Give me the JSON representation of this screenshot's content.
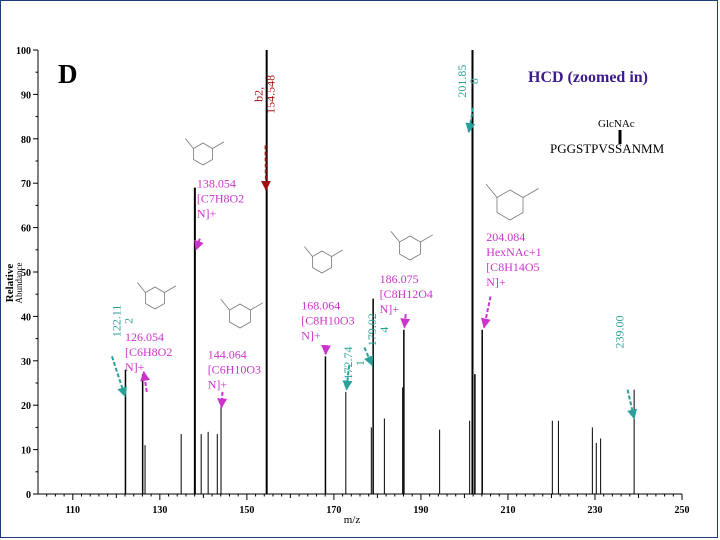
{
  "panel_label": "D",
  "title": "HCD (zoomed in)",
  "peptide": {
    "glycan_label": "GlcNAc",
    "sequence": "PGGSTPVSSANMM"
  },
  "colors": {
    "peak": "#000000",
    "magenta": "#cc33cc",
    "teal": "#2aa198",
    "dark_red": "#a01010",
    "title_purple": "#3d1a8c",
    "frame": "#1f3f7a"
  },
  "chart_data": {
    "type": "bar",
    "xlabel": "m/z",
    "ylabel": "Relative Abundance",
    "xlim": [
      102,
      250
    ],
    "ylim": [
      0,
      100
    ],
    "x_ticks": [
      110,
      130,
      150,
      170,
      190,
      210,
      230,
      250
    ],
    "y_ticks": [
      0,
      10,
      20,
      30,
      40,
      50,
      60,
      70,
      80,
      90,
      100
    ],
    "peaks": [
      {
        "x": 122.1,
        "y": 28
      },
      {
        "x": 126.05,
        "y": 27
      },
      {
        "x": 126.6,
        "y": 11
      },
      {
        "x": 134.9,
        "y": 13.5
      },
      {
        "x": 138.05,
        "y": 69
      },
      {
        "x": 139.5,
        "y": 13.5
      },
      {
        "x": 141.1,
        "y": 14
      },
      {
        "x": 143.2,
        "y": 13.5
      },
      {
        "x": 144.06,
        "y": 20
      },
      {
        "x": 154.55,
        "y": 100
      },
      {
        "x": 168.06,
        "y": 31
      },
      {
        "x": 172.74,
        "y": 23
      },
      {
        "x": 178.6,
        "y": 15
      },
      {
        "x": 179.02,
        "y": 44
      },
      {
        "x": 181.6,
        "y": 17
      },
      {
        "x": 185.8,
        "y": 24
      },
      {
        "x": 186.08,
        "y": 37
      },
      {
        "x": 194.3,
        "y": 14.5
      },
      {
        "x": 201.2,
        "y": 16.5
      },
      {
        "x": 201.85,
        "y": 100
      },
      {
        "x": 202.4,
        "y": 27
      },
      {
        "x": 204.08,
        "y": 37
      },
      {
        "x": 220.2,
        "y": 16.5
      },
      {
        "x": 221.6,
        "y": 16.5
      },
      {
        "x": 229.4,
        "y": 15
      },
      {
        "x": 230.3,
        "y": 11.5
      },
      {
        "x": 231.3,
        "y": 12.5
      },
      {
        "x": 239.0,
        "y": 23.5
      }
    ],
    "annotations": [
      {
        "x": 126.054,
        "y": 27,
        "color": "magenta",
        "lines": [
          "126.054",
          "[C6H8O2",
          "N]+"
        ],
        "lx": 122,
        "ly": 34.5,
        "anchor": "start",
        "vertical": false,
        "arrow_from": [
          127,
          23
        ],
        "arrow_to": [
          126.3,
          27.5
        ]
      },
      {
        "x": 138.054,
        "y": 69,
        "color": "magenta",
        "lines": [
          "138.054",
          "[C7H8O2",
          "N]+"
        ],
        "lx": 138.5,
        "ly": 69,
        "anchor": "start",
        "vertical": false,
        "arrow_from": [
          139.2,
          57.5
        ],
        "arrow_to": [
          138.3,
          55
        ]
      },
      {
        "x": 144.064,
        "y": 20,
        "color": "magenta",
        "lines": [
          "144.064",
          "[C6H10O3",
          "N]+"
        ],
        "lx": 141,
        "ly": 30.5,
        "anchor": "start",
        "vertical": false,
        "arrow_from": [
          144.4,
          23
        ],
        "arrow_to": [
          144.2,
          19.5
        ]
      },
      {
        "x": 168.064,
        "y": 31,
        "color": "magenta",
        "lines": [
          "168.064",
          "[C8H10O3",
          "N]+"
        ],
        "lx": 162.5,
        "ly": 41.5,
        "anchor": "start",
        "vertical": false,
        "arrow_from": [
          168.2,
          33.5
        ],
        "arrow_to": [
          168.1,
          31.5
        ]
      },
      {
        "x": 186.075,
        "y": 37,
        "color": "magenta",
        "lines": [
          "186.075",
          "[C8H12O4",
          "N]+"
        ],
        "lx": 180.5,
        "ly": 47.5,
        "anchor": "start",
        "vertical": false,
        "arrow_from": [
          186.5,
          40.5
        ],
        "arrow_to": [
          186.2,
          37.5
        ]
      },
      {
        "x": 204.084,
        "y": 37,
        "color": "magenta",
        "lines": [
          "204.084",
          "HexNAc+1",
          "[C8H14O5",
          "N]+"
        ],
        "lx": 205,
        "ly": 57,
        "anchor": "start",
        "vertical": false,
        "arrow_from": [
          206,
          44.5
        ],
        "arrow_to": [
          204.5,
          37.5
        ]
      },
      {
        "x": 122.112,
        "y": 28,
        "color": "teal",
        "lines": [
          "122.11",
          "2"
        ],
        "lx": 121,
        "ly": 39,
        "anchor": "middle",
        "vertical": true,
        "arrow_from": [
          119,
          31
        ],
        "arrow_to": [
          122,
          22
        ]
      },
      {
        "x": 172.741,
        "y": 23,
        "color": "teal",
        "lines": [
          "172.74",
          "1"
        ],
        "lx": 174.2,
        "ly": 29.5,
        "anchor": "middle",
        "vertical": true,
        "arrow_from": [
          173.5,
          29
        ],
        "arrow_to": [
          172.9,
          23.5
        ]
      },
      {
        "x": 179.024,
        "y": 44,
        "color": "teal",
        "lines": [
          "179.02",
          "4"
        ],
        "lx": 179.7,
        "ly": 37,
        "anchor": "middle",
        "vertical": true,
        "arrow_from": [
          177,
          33
        ],
        "arrow_to": [
          178.8,
          29
        ]
      },
      {
        "x": 201.858,
        "y": 100,
        "color": "teal",
        "lines": [
          "201.85",
          "8"
        ],
        "lx": 200.4,
        "ly": 93,
        "anchor": "middle",
        "vertical": true,
        "arrow_from": [
          202,
          87
        ],
        "arrow_to": [
          201,
          81.5
        ]
      },
      {
        "x": 239.0,
        "y": 23.5,
        "color": "teal",
        "lines": [
          "239.00"
        ],
        "lx": 236.5,
        "ly": 36.5,
        "anchor": "middle",
        "vertical": true,
        "arrow_from": [
          237.5,
          23.5
        ],
        "arrow_to": [
          239,
          17
        ]
      },
      {
        "x": 154.548,
        "y": 100,
        "color": "dark_red",
        "lines": [
          "b2,",
          "154.548"
        ],
        "lx": 153.6,
        "ly": 90,
        "anchor": "middle",
        "vertical": true,
        "arrow_from": [
          154.3,
          78.5
        ],
        "arrow_to": [
          154.4,
          68.5
        ]
      }
    ]
  }
}
